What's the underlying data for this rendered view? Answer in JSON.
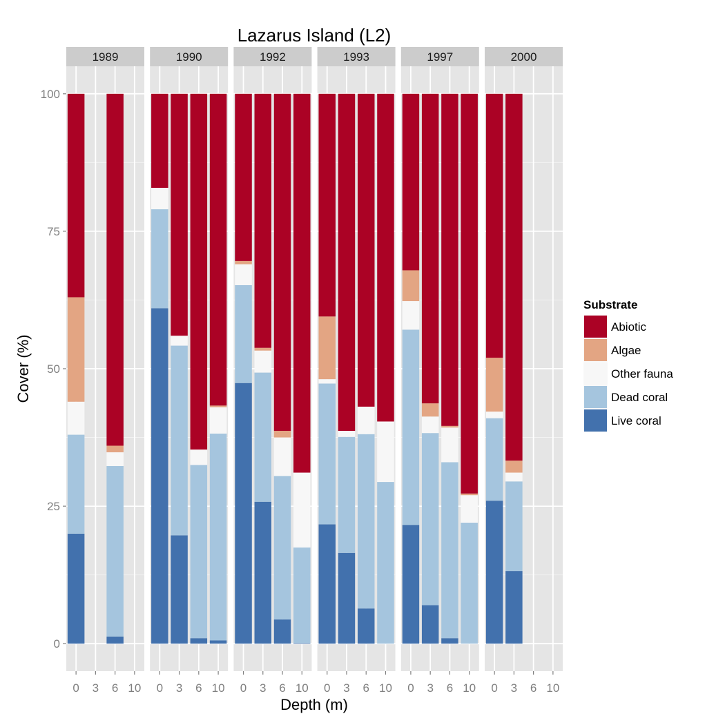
{
  "chart_data": {
    "type": "bar",
    "stacked": true,
    "faceted_by": "year",
    "title": "Lazarus Island (L2)",
    "xlabel": "Depth (m)",
    "ylabel": "Cover (%)",
    "ylim": [
      -5,
      105
    ],
    "yticks": [
      0,
      25,
      50,
      75,
      100
    ],
    "categories": [
      "0",
      "3",
      "6",
      "10"
    ],
    "grid": true,
    "legend": {
      "title": "Substrate",
      "placement": "right",
      "entries": [
        "Abiotic",
        "Algae",
        "Other fauna",
        "Dead coral",
        "Live coral"
      ]
    },
    "colors": {
      "Live coral": "#4271ad",
      "Dead coral": "#a5c5de",
      "Other fauna": "#f7f7f7",
      "Algae": "#e3a583",
      "Abiotic": "#ab0225"
    },
    "stack_order_bottom_to_top": [
      "Live coral",
      "Dead coral",
      "Other fauna",
      "Algae",
      "Abiotic"
    ],
    "panels": [
      {
        "year": "1989",
        "bars": [
          {
            "depth": "0",
            "Live coral": 20,
            "Dead coral": 18,
            "Other fauna": 6,
            "Algae": 19,
            "Abiotic": 37
          },
          {
            "depth": "6",
            "Live coral": 1.3,
            "Dead coral": 31,
            "Other fauna": 2.5,
            "Algae": 1.2,
            "Abiotic": 64
          }
        ]
      },
      {
        "year": "1990",
        "bars": [
          {
            "depth": "0",
            "Live coral": 61,
            "Dead coral": 18,
            "Other fauna": 3.9,
            "Algae": 0,
            "Abiotic": 17.1
          },
          {
            "depth": "3",
            "Live coral": 19.7,
            "Dead coral": 34.5,
            "Other fauna": 1.8,
            "Algae": 0,
            "Abiotic": 44
          },
          {
            "depth": "6",
            "Live coral": 1,
            "Dead coral": 31.5,
            "Other fauna": 2.8,
            "Algae": 0,
            "Abiotic": 64.7
          },
          {
            "depth": "10",
            "Live coral": 0.6,
            "Dead coral": 37.6,
            "Other fauna": 4.8,
            "Algae": 0.3,
            "Abiotic": 56.7
          }
        ]
      },
      {
        "year": "1992",
        "bars": [
          {
            "depth": "0",
            "Live coral": 47.4,
            "Dead coral": 17.8,
            "Other fauna": 3.8,
            "Algae": 0.6,
            "Abiotic": 30.4
          },
          {
            "depth": "3",
            "Live coral": 25.8,
            "Dead coral": 23.5,
            "Other fauna": 4,
            "Algae": 0.5,
            "Abiotic": 46.2
          },
          {
            "depth": "6",
            "Live coral": 4.4,
            "Dead coral": 26.1,
            "Other fauna": 7,
            "Algae": 1.2,
            "Abiotic": 61.3
          },
          {
            "depth": "10",
            "Live coral": 0.1,
            "Dead coral": 17.4,
            "Other fauna": 13.6,
            "Algae": 0,
            "Abiotic": 68.9
          }
        ]
      },
      {
        "year": "1993",
        "bars": [
          {
            "depth": "0",
            "Live coral": 21.7,
            "Dead coral": 25.6,
            "Other fauna": 0.8,
            "Algae": 11.4,
            "Abiotic": 40.5
          },
          {
            "depth": "3",
            "Live coral": 16.5,
            "Dead coral": 21.1,
            "Other fauna": 1.1,
            "Algae": 0,
            "Abiotic": 61.3
          },
          {
            "depth": "6",
            "Live coral": 6.4,
            "Dead coral": 31.7,
            "Other fauna": 5,
            "Algae": 0,
            "Abiotic": 56.9
          },
          {
            "depth": "10",
            "Live coral": 0,
            "Dead coral": 29.4,
            "Other fauna": 11,
            "Algae": 0,
            "Abiotic": 59.6
          }
        ]
      },
      {
        "year": "1997",
        "bars": [
          {
            "depth": "0",
            "Live coral": 21.6,
            "Dead coral": 35.5,
            "Other fauna": 5.2,
            "Algae": 5.6,
            "Abiotic": 32.1
          },
          {
            "depth": "3",
            "Live coral": 7,
            "Dead coral": 31.3,
            "Other fauna": 3,
            "Algae": 2.4,
            "Abiotic": 56.3
          },
          {
            "depth": "6",
            "Live coral": 1,
            "Dead coral": 32,
            "Other fauna": 6.3,
            "Algae": 0.3,
            "Abiotic": 60.4
          },
          {
            "depth": "10",
            "Live coral": 0,
            "Dead coral": 22,
            "Other fauna": 5,
            "Algae": 0.3,
            "Abiotic": 72.7
          }
        ]
      },
      {
        "year": "2000",
        "bars": [
          {
            "depth": "0",
            "Live coral": 26,
            "Dead coral": 15,
            "Other fauna": 1.2,
            "Algae": 9.8,
            "Abiotic": 48
          },
          {
            "depth": "3",
            "Live coral": 13.2,
            "Dead coral": 16.3,
            "Other fauna": 1.6,
            "Algae": 2.2,
            "Abiotic": 66.7
          }
        ]
      }
    ]
  }
}
